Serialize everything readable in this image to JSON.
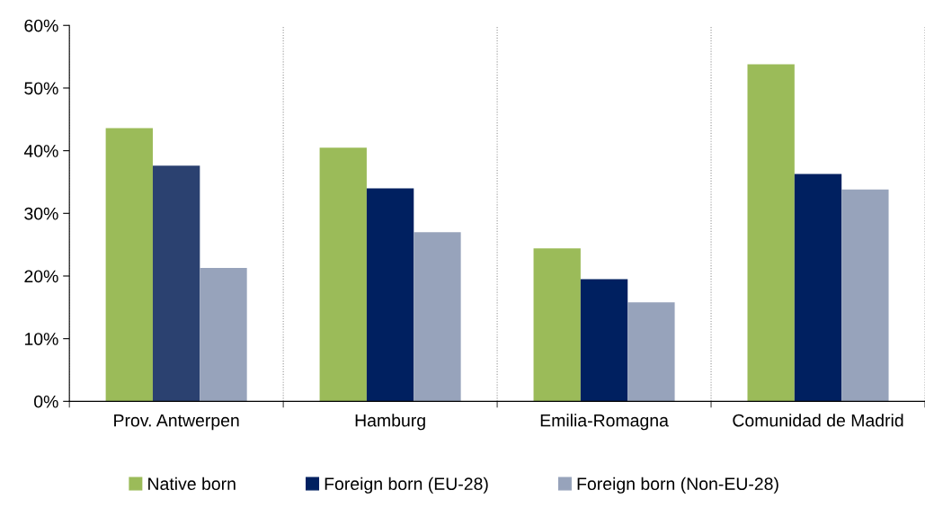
{
  "chart_data": {
    "type": "bar",
    "categories": [
      "Prov. Antwerpen",
      "Hamburg",
      "Emilia-Romagna",
      "Comunidad de Madrid"
    ],
    "series": [
      {
        "name": "Native born",
        "color": "#9bbb59",
        "values": [
          43.6,
          40.5,
          24.4,
          53.8
        ]
      },
      {
        "name": "Foreign born (EU-28)",
        "color": "#002060",
        "colors": [
          "#2b4170",
          "#002060",
          "#002060",
          "#002060"
        ],
        "values": [
          37.6,
          34.0,
          19.5,
          36.3
        ]
      },
      {
        "name": "Foreign born (Non-EU-28)",
        "color": "#97a3bb",
        "values": [
          21.3,
          27.0,
          15.8,
          33.8
        ]
      }
    ],
    "ylim": [
      0,
      60
    ],
    "yticks": [
      {
        "value": 0,
        "label": "0%"
      },
      {
        "value": 10,
        "label": "10%"
      },
      {
        "value": 20,
        "label": "20%"
      },
      {
        "value": 30,
        "label": "30%"
      },
      {
        "value": 40,
        "label": "40%"
      },
      {
        "value": 50,
        "label": "50%"
      },
      {
        "value": 60,
        "label": "60%"
      }
    ],
    "grid": "x",
    "legend": "bottom"
  }
}
